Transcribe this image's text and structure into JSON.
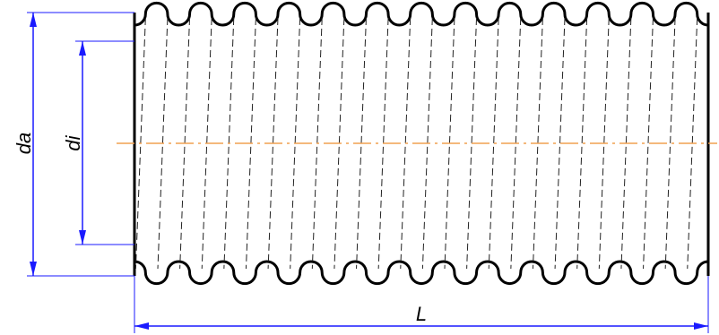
{
  "labels": {
    "outer_diameter": "da",
    "inner_diameter": "di",
    "length": "L"
  },
  "colors": {
    "outline": "#000000",
    "dimension": "#1a1aff",
    "centerline": "#f0a050"
  },
  "corrugations": 13
}
